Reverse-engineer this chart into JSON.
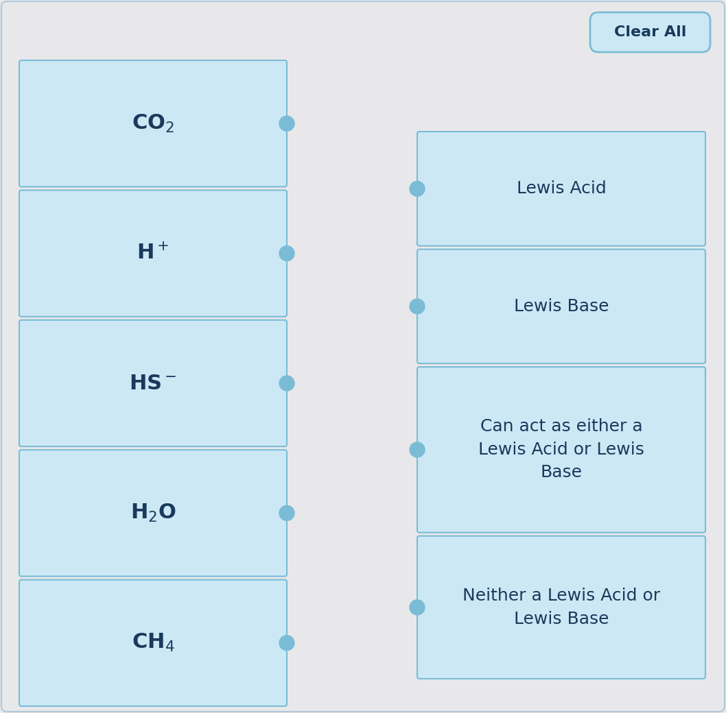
{
  "bg_color": "#e8e8ea",
  "box_fill_light": "#cde8f5",
  "box_edge_color": "#7abcd6",
  "dot_color": "#7abcd6",
  "text_color": "#1a3a5c",
  "clear_all_text": "Clear All",
  "clear_all_bg": "#cde8f5",
  "clear_all_edge": "#7abcd6",
  "left_items": [
    {
      "label": "CO$_2$",
      "bold": true
    },
    {
      "label": "H$^+$",
      "bold": true
    },
    {
      "label": "HS$^-$",
      "bold": true
    },
    {
      "label": "H$_2$O",
      "bold": true
    },
    {
      "label": "CH$_4$",
      "bold": true
    }
  ],
  "right_items": [
    {
      "label": "Lewis Acid"
    },
    {
      "label": "Lewis Base"
    },
    {
      "label": "Can act as either a\nLewis Acid or Lewis\nBase"
    },
    {
      "label": "Neither a Lewis Acid or\nLewis Base"
    }
  ],
  "fig_w": 10.58,
  "fig_h": 10.4
}
